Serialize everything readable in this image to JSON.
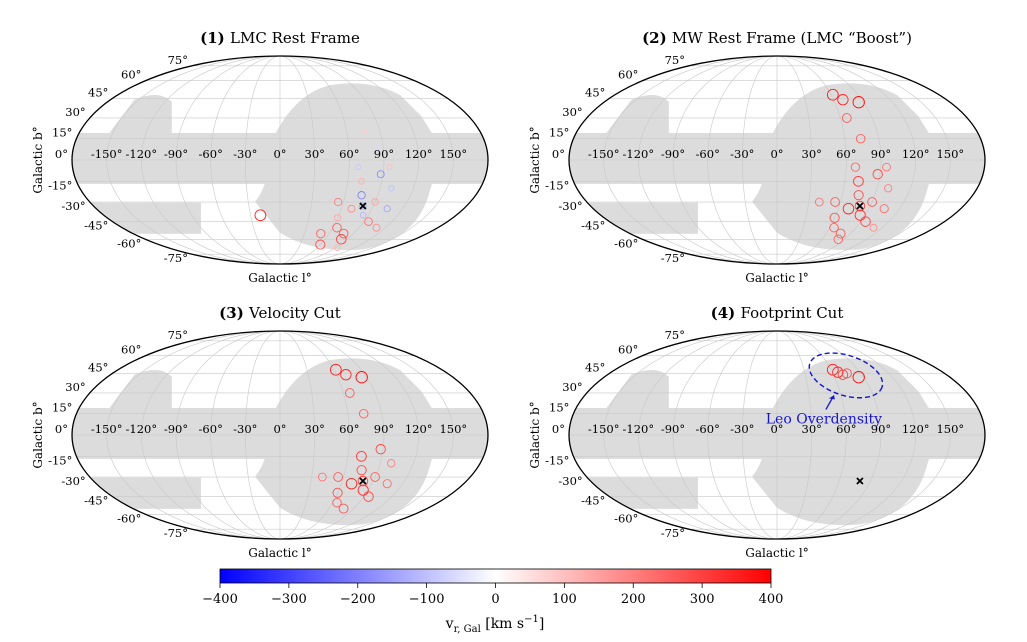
{
  "chart_data": [
    {
      "type": "scatter",
      "projection": "mollweide",
      "panel_number": "(1)",
      "title": "LMC Rest Frame",
      "xlabel": "Galactic l°",
      "ylabel": "Galactic b°",
      "lon_ticks": [
        "-150°",
        "-120°",
        "-90°",
        "-60°",
        "-30°",
        "0°",
        "30°",
        "60°",
        "90°",
        "120°",
        "150°"
      ],
      "lat_ticks": [
        "75°",
        "60°",
        "45°",
        "30°",
        "15°",
        "0°",
        "-15°",
        "-30°",
        "-45°",
        "-60°",
        "-75°"
      ],
      "lmc_marker": {
        "l": 80,
        "b": -33
      },
      "points": [
        {
          "l": 80,
          "b": -33,
          "v": -150
        },
        {
          "l": 75,
          "b": -25,
          "v": -200
        },
        {
          "l": 85,
          "b": -40,
          "v": -120
        },
        {
          "l": 90,
          "b": -30,
          "v": 150
        },
        {
          "l": 70,
          "b": -35,
          "v": 180
        },
        {
          "l": 95,
          "b": -45,
          "v": 220
        },
        {
          "l": 65,
          "b": -50,
          "v": 250
        },
        {
          "l": 100,
          "b": -20,
          "v": -100
        },
        {
          "l": 72,
          "b": -15,
          "v": 120
        },
        {
          "l": 88,
          "b": -10,
          "v": -180
        },
        {
          "l": 60,
          "b": -42,
          "v": 140
        },
        {
          "l": 78,
          "b": -55,
          "v": 260
        },
        {
          "l": 105,
          "b": -35,
          "v": -140
        },
        {
          "l": 55,
          "b": -30,
          "v": 200
        },
        {
          "l": 82,
          "b": -60,
          "v": 300
        },
        {
          "l": 95,
          "b": -5,
          "v": 100
        },
        {
          "l": 68,
          "b": -5,
          "v": -90
        },
        {
          "l": 110,
          "b": -50,
          "v": 180
        },
        {
          "l": 50,
          "b": -55,
          "v": 240
        },
        {
          "l": -20,
          "b": -40,
          "v": 350
        },
        {
          "l": 60,
          "b": -65,
          "v": 280
        },
        {
          "l": 92,
          "b": -68,
          "v": 120
        },
        {
          "l": 85,
          "b": 8,
          "v": -60
        },
        {
          "l": 76,
          "b": 20,
          "v": 80
        }
      ]
    },
    {
      "type": "scatter",
      "projection": "mollweide",
      "panel_number": "(2)",
      "title": "MW Rest Frame (LMC “Boost”)",
      "xlabel": "Galactic l°",
      "ylabel": "Galactic b°",
      "lon_ticks": [
        "-150°",
        "-120°",
        "-90°",
        "-60°",
        "-30°",
        "0°",
        "30°",
        "60°",
        "90°",
        "120°",
        "150°"
      ],
      "lat_ticks": [
        "75°",
        "60°",
        "45°",
        "30°",
        "15°",
        "0°",
        "-15°",
        "-30°",
        "-45°",
        "-60°",
        "-75°"
      ],
      "lmc_marker": {
        "l": 80,
        "b": -33
      },
      "points": [
        {
          "l": 80,
          "b": -33,
          "v": 300
        },
        {
          "l": 75,
          "b": -25,
          "v": 280
        },
        {
          "l": 85,
          "b": -40,
          "v": 320
        },
        {
          "l": 90,
          "b": -30,
          "v": 260
        },
        {
          "l": 70,
          "b": -35,
          "v": 340
        },
        {
          "l": 95,
          "b": -45,
          "v": 300
        },
        {
          "l": 65,
          "b": -50,
          "v": 250
        },
        {
          "l": 100,
          "b": -20,
          "v": 200
        },
        {
          "l": 72,
          "b": -15,
          "v": 310
        },
        {
          "l": 88,
          "b": -10,
          "v": 290
        },
        {
          "l": 60,
          "b": -42,
          "v": 280
        },
        {
          "l": 78,
          "b": -55,
          "v": 270
        },
        {
          "l": 105,
          "b": -35,
          "v": 230
        },
        {
          "l": 55,
          "b": -30,
          "v": 260
        },
        {
          "l": 82,
          "b": -60,
          "v": 250
        },
        {
          "l": 95,
          "b": -5,
          "v": 220
        },
        {
          "l": 68,
          "b": -5,
          "v": 240
        },
        {
          "l": 110,
          "b": -50,
          "v": 180
        },
        {
          "l": 62,
          "b": 48,
          "v": 350
        },
        {
          "l": 70,
          "b": 44,
          "v": 330
        },
        {
          "l": 85,
          "b": 42,
          "v": 380
        },
        {
          "l": 66,
          "b": 30,
          "v": 260
        },
        {
          "l": 74,
          "b": 15,
          "v": 250
        },
        {
          "l": 40,
          "b": -30,
          "v": 220
        }
      ]
    },
    {
      "type": "scatter",
      "projection": "mollweide",
      "panel_number": "(3)",
      "title": "Velocity Cut",
      "xlabel": "Galactic l°",
      "ylabel": "Galactic b°",
      "lon_ticks": [
        "-150°",
        "-120°",
        "-90°",
        "-60°",
        "-30°",
        "0°",
        "30°",
        "60°",
        "90°",
        "120°",
        "150°"
      ],
      "lat_ticks": [
        "75°",
        "60°",
        "45°",
        "30°",
        "15°",
        "0°",
        "-15°",
        "-30°",
        "-45°",
        "-60°",
        "-75°"
      ],
      "lmc_marker": {
        "l": 80,
        "b": -33
      },
      "points": [
        {
          "l": 80,
          "b": -33,
          "v": 300
        },
        {
          "l": 75,
          "b": -25,
          "v": 280
        },
        {
          "l": 85,
          "b": -40,
          "v": 320
        },
        {
          "l": 90,
          "b": -30,
          "v": 260
        },
        {
          "l": 70,
          "b": -35,
          "v": 340
        },
        {
          "l": 95,
          "b": -45,
          "v": 300
        },
        {
          "l": 65,
          "b": -50,
          "v": 250
        },
        {
          "l": 100,
          "b": -20,
          "v": 200
        },
        {
          "l": 72,
          "b": -15,
          "v": 310
        },
        {
          "l": 88,
          "b": -10,
          "v": 290
        },
        {
          "l": 60,
          "b": -42,
          "v": 280
        },
        {
          "l": 78,
          "b": -55,
          "v": 270
        },
        {
          "l": 105,
          "b": -35,
          "v": 230
        },
        {
          "l": 55,
          "b": -30,
          "v": 260
        },
        {
          "l": 62,
          "b": 48,
          "v": 350
        },
        {
          "l": 70,
          "b": 44,
          "v": 330
        },
        {
          "l": 85,
          "b": 42,
          "v": 380
        },
        {
          "l": 66,
          "b": 30,
          "v": 260
        },
        {
          "l": 74,
          "b": 15,
          "v": 250
        },
        {
          "l": 40,
          "b": -30,
          "v": 220
        }
      ]
    },
    {
      "type": "scatter",
      "projection": "mollweide",
      "panel_number": "(4)",
      "title": "Footprint Cut",
      "xlabel": "Galactic l°",
      "ylabel": "Galactic b°",
      "lon_ticks": [
        "-150°",
        "-120°",
        "-90°",
        "-60°",
        "-30°",
        "0°",
        "30°",
        "60°",
        "90°",
        "120°",
        "150°"
      ],
      "lat_ticks": [
        "75°",
        "60°",
        "45°",
        "30°",
        "15°",
        "0°",
        "-15°",
        "-30°",
        "-45°",
        "-60°",
        "-75°"
      ],
      "lmc_marker": {
        "l": 80,
        "b": -33
      },
      "annotation": "Leo Overdensity",
      "points": [
        {
          "l": 62,
          "b": 48,
          "v": 350
        },
        {
          "l": 66,
          "b": 46,
          "v": 330
        },
        {
          "l": 70,
          "b": 44,
          "v": 300
        },
        {
          "l": 75,
          "b": 45,
          "v": 280
        },
        {
          "l": 85,
          "b": 42,
          "v": 380
        }
      ]
    }
  ],
  "colorbar": {
    "cmap": "bwr",
    "vmin": -400,
    "vmax": 400,
    "ticks": [
      "−400",
      "−300",
      "−200",
      "−100",
      "0",
      "100",
      "200",
      "300",
      "400"
    ],
    "label": "v",
    "label_sub": "r, Gal",
    "label_unit": "[km s",
    "label_exp": "−1",
    "label_close": "]"
  },
  "colors": {
    "grey": "#dcdcdc",
    "grid": "#c8c8c8",
    "annotation": "#1515d0"
  }
}
